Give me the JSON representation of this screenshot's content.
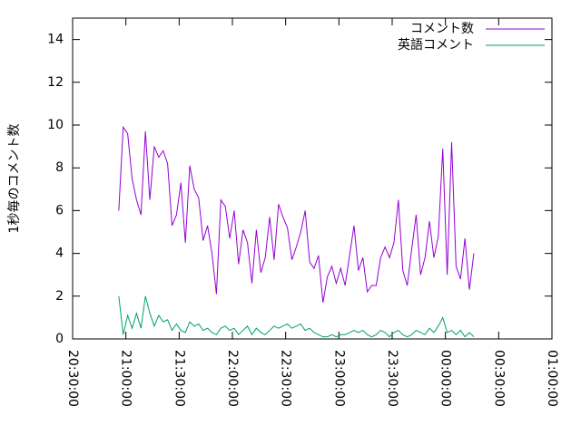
{
  "chart_data": {
    "type": "line",
    "y_label": "1秒毎のコメント数",
    "x": [
      "20:56:00",
      "20:58:30",
      "21:01:00",
      "21:03:30",
      "21:06:00",
      "21:08:30",
      "21:11:00",
      "21:13:30",
      "21:16:00",
      "21:18:30",
      "21:21:00",
      "21:23:30",
      "21:26:00",
      "21:28:30",
      "21:31:00",
      "21:33:30",
      "21:36:00",
      "21:38:30",
      "21:41:00",
      "21:43:30",
      "21:46:00",
      "21:48:30",
      "21:51:00",
      "21:53:30",
      "21:56:00",
      "21:58:30",
      "22:01:00",
      "22:03:30",
      "22:06:00",
      "22:08:30",
      "22:11:00",
      "22:13:30",
      "22:16:00",
      "22:18:30",
      "22:21:00",
      "22:23:30",
      "22:26:00",
      "22:28:30",
      "22:31:00",
      "22:33:30",
      "22:36:00",
      "22:38:30",
      "22:41:00",
      "22:43:30",
      "22:46:00",
      "22:48:30",
      "22:51:00",
      "22:53:30",
      "22:56:00",
      "22:58:30",
      "23:01:00",
      "23:03:30",
      "23:06:00",
      "23:08:30",
      "23:11:00",
      "23:13:30",
      "23:16:00",
      "23:18:30",
      "23:21:00",
      "23:23:30",
      "23:26:00",
      "23:28:30",
      "23:31:00",
      "23:33:30",
      "23:36:00",
      "23:38:30",
      "23:41:00",
      "23:43:30",
      "23:46:00",
      "23:48:30",
      "23:51:00",
      "23:53:30",
      "23:56:00",
      "23:58:30",
      "00:01:00",
      "00:03:30",
      "00:06:00",
      "00:08:30",
      "00:11:00",
      "00:13:30",
      "00:16:00"
    ],
    "series": [
      {
        "name": "コメント数",
        "color": "#9400d3",
        "values": [
          6.0,
          9.9,
          9.6,
          7.5,
          6.5,
          5.8,
          9.7,
          6.5,
          9.0,
          8.5,
          8.8,
          8.2,
          5.3,
          5.8,
          7.3,
          4.5,
          8.1,
          7.0,
          6.6,
          4.6,
          5.3,
          4.0,
          2.1,
          6.5,
          6.2,
          4.7,
          6.0,
          3.5,
          5.1,
          4.5,
          2.6,
          5.1,
          3.1,
          3.8,
          5.7,
          3.7,
          6.3,
          5.7,
          5.2,
          3.7,
          4.3,
          5.0,
          6.0,
          3.6,
          3.3,
          3.9,
          1.7,
          2.9,
          3.4,
          2.6,
          3.3,
          2.5,
          3.9,
          5.3,
          3.2,
          3.8,
          2.2,
          2.5,
          2.5,
          3.8,
          4.3,
          3.8,
          4.5,
          6.5,
          3.2,
          2.5,
          4.2,
          5.8,
          3.0,
          3.8,
          5.5,
          3.8,
          4.8,
          8.9,
          3.0,
          9.2,
          3.4,
          2.8,
          4.7,
          2.3,
          4.0
        ]
      },
      {
        "name": "英語コメント",
        "color": "#009e73",
        "values": [
          2.0,
          0.2,
          1.1,
          0.5,
          1.2,
          0.5,
          2.0,
          1.2,
          0.6,
          1.1,
          0.8,
          0.9,
          0.4,
          0.7,
          0.4,
          0.3,
          0.8,
          0.6,
          0.7,
          0.4,
          0.5,
          0.3,
          0.2,
          0.5,
          0.6,
          0.4,
          0.5,
          0.2,
          0.4,
          0.6,
          0.2,
          0.5,
          0.3,
          0.2,
          0.4,
          0.6,
          0.5,
          0.6,
          0.7,
          0.5,
          0.6,
          0.7,
          0.4,
          0.5,
          0.3,
          0.2,
          0.1,
          0.1,
          0.2,
          0.1,
          0.2,
          0.2,
          0.3,
          0.4,
          0.3,
          0.4,
          0.2,
          0.1,
          0.2,
          0.4,
          0.3,
          0.1,
          0.3,
          0.4,
          0.2,
          0.1,
          0.2,
          0.4,
          0.3,
          0.2,
          0.5,
          0.3,
          0.6,
          1.0,
          0.3,
          0.4,
          0.2,
          0.4,
          0.1,
          0.3,
          0.1
        ]
      }
    ],
    "xlim": [
      "20:30:00",
      "01:00:00"
    ],
    "xticks": [
      "20:30:00",
      "21:00:00",
      "21:30:00",
      "22:00:00",
      "22:30:00",
      "23:00:00",
      "23:30:00",
      "00:00:00",
      "00:30:00",
      "01:00:00"
    ],
    "ylim": [
      0,
      15
    ],
    "yticks": [
      0,
      2,
      4,
      6,
      8,
      10,
      12,
      14
    ],
    "legend": "top right"
  }
}
